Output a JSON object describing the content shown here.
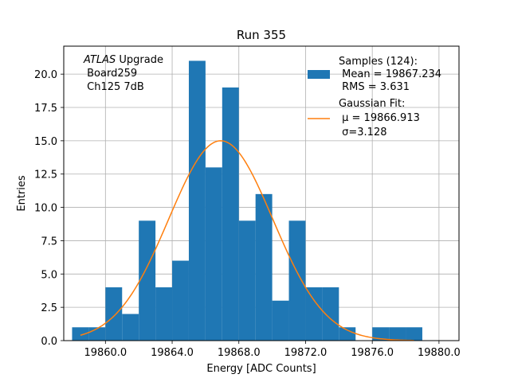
{
  "chart_data": {
    "type": "bar",
    "title": "Run 355",
    "xlabel": "Energy [ADC Counts]",
    "ylabel": "Entries",
    "xlim": [
      19857.5,
      19881.2
    ],
    "ylim": [
      0,
      22.1
    ],
    "xticks": [
      19860,
      19864,
      19868,
      19872,
      19876,
      19880
    ],
    "xtick_labels": [
      "19860.0",
      "19864.0",
      "19868.0",
      "19872.0",
      "19876.0",
      "19880.0"
    ],
    "yticks": [
      0,
      2.5,
      5,
      7.5,
      10,
      12.5,
      15,
      17.5,
      20
    ],
    "ytick_labels": [
      "0.0",
      "2.5",
      "5.0",
      "7.5",
      "10.0",
      "12.5",
      "15.0",
      "17.5",
      "20.0"
    ],
    "grid": true,
    "bin_edges": [
      19858,
      19859,
      19860,
      19861,
      19862,
      19863,
      19864,
      19865,
      19866,
      19867,
      19868,
      19869,
      19870,
      19871,
      19872,
      19873,
      19874,
      19875,
      19876,
      19877,
      19878,
      19879
    ],
    "counts": [
      1,
      1,
      4,
      2,
      9,
      4,
      6,
      21,
      13,
      19,
      9,
      11,
      3,
      9,
      4,
      4,
      1,
      0,
      1,
      1,
      1
    ],
    "bar_color": "#1f77b4",
    "fit": {
      "mu": 19866.913,
      "sigma": 3.128,
      "amplitude": 15.0,
      "x_range": [
        19858.5,
        19878.5
      ],
      "color": "#ff7f0e"
    },
    "annotation": {
      "italic": "ATLAS",
      "rest": " Upgrade",
      "line2": " Board259",
      "line3": " Ch125 7dB"
    },
    "legend": {
      "placement": "top-right",
      "samples": {
        "line1": "Samples (124):",
        "line2": " Mean = 19867.234",
        "line3": " RMS = 3.631"
      },
      "fit": {
        "line1": "Gaussian Fit:",
        "mu_line": " μ = 19866.913",
        "sigma_line": " σ=3.128"
      }
    }
  }
}
